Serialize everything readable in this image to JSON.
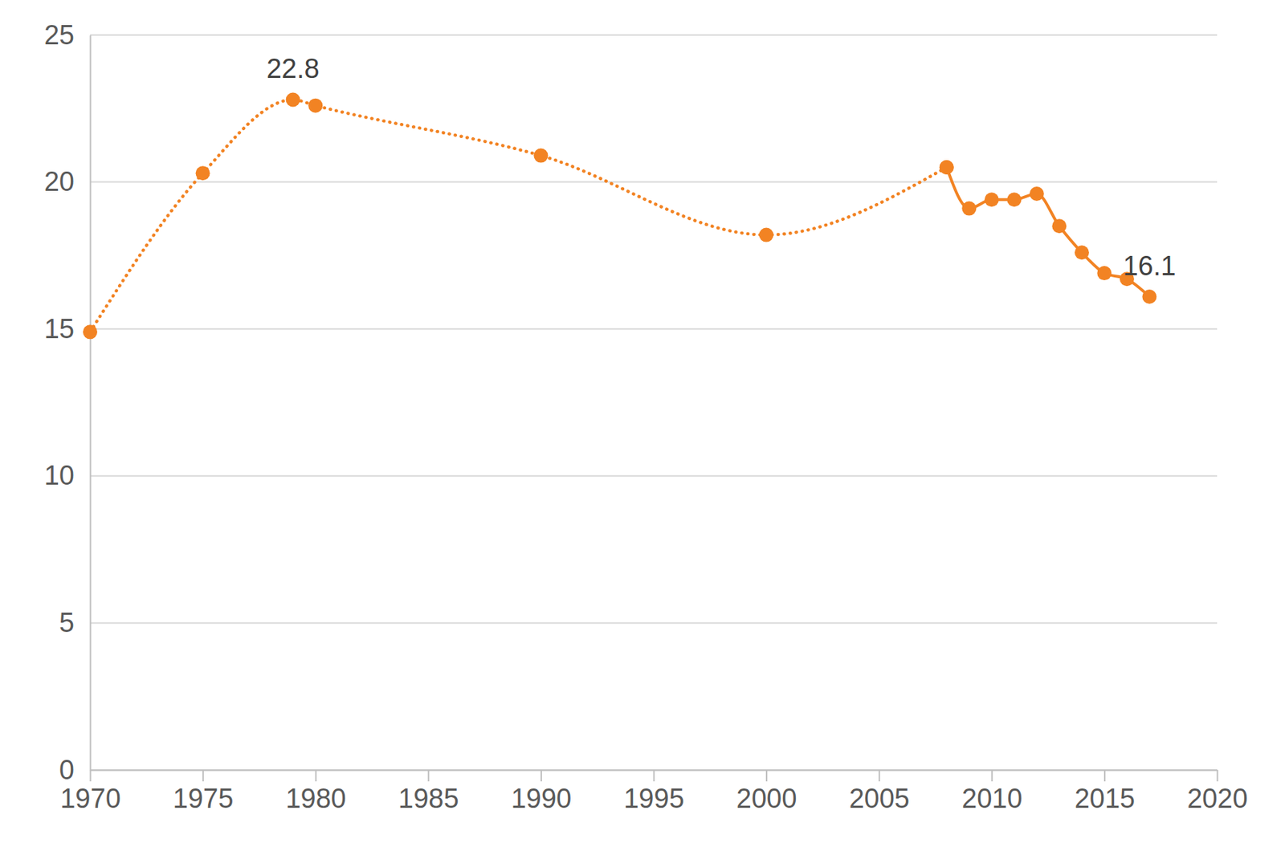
{
  "chart_data": {
    "type": "line",
    "x": [
      1970,
      1975,
      1979,
      1980,
      1990,
      2000,
      2008,
      2009,
      2010,
      2011,
      2012,
      2013,
      2014,
      2015,
      2016,
      2017
    ],
    "series": [
      {
        "color": "#f28323",
        "line_style": "dotted",
        "marker": "circle",
        "values": [
          14.9,
          20.3,
          22.8,
          22.6,
          20.9,
          18.2,
          20.5,
          null,
          null,
          null,
          null,
          null,
          null,
          null,
          null,
          null
        ]
      },
      {
        "color": "#f28323",
        "line_style": "solid",
        "marker": "circle",
        "values": [
          null,
          null,
          null,
          null,
          null,
          null,
          20.5,
          19.1,
          19.4,
          19.4,
          19.6,
          18.5,
          17.6,
          16.9,
          16.7,
          16.1
        ]
      }
    ],
    "annotations": [
      {
        "text": "22.8",
        "x": 1979,
        "y": 22.8
      },
      {
        "text": "16.1",
        "x": 2017,
        "y": 16.1
      }
    ],
    "xlim": [
      1970,
      2020
    ],
    "xticks": [
      1970,
      1975,
      1980,
      1985,
      1990,
      1995,
      2000,
      2005,
      2010,
      2015,
      2020
    ],
    "ylim": [
      0,
      25
    ],
    "yticks": [
      0,
      5,
      10,
      15,
      20,
      25
    ],
    "grid": true
  }
}
